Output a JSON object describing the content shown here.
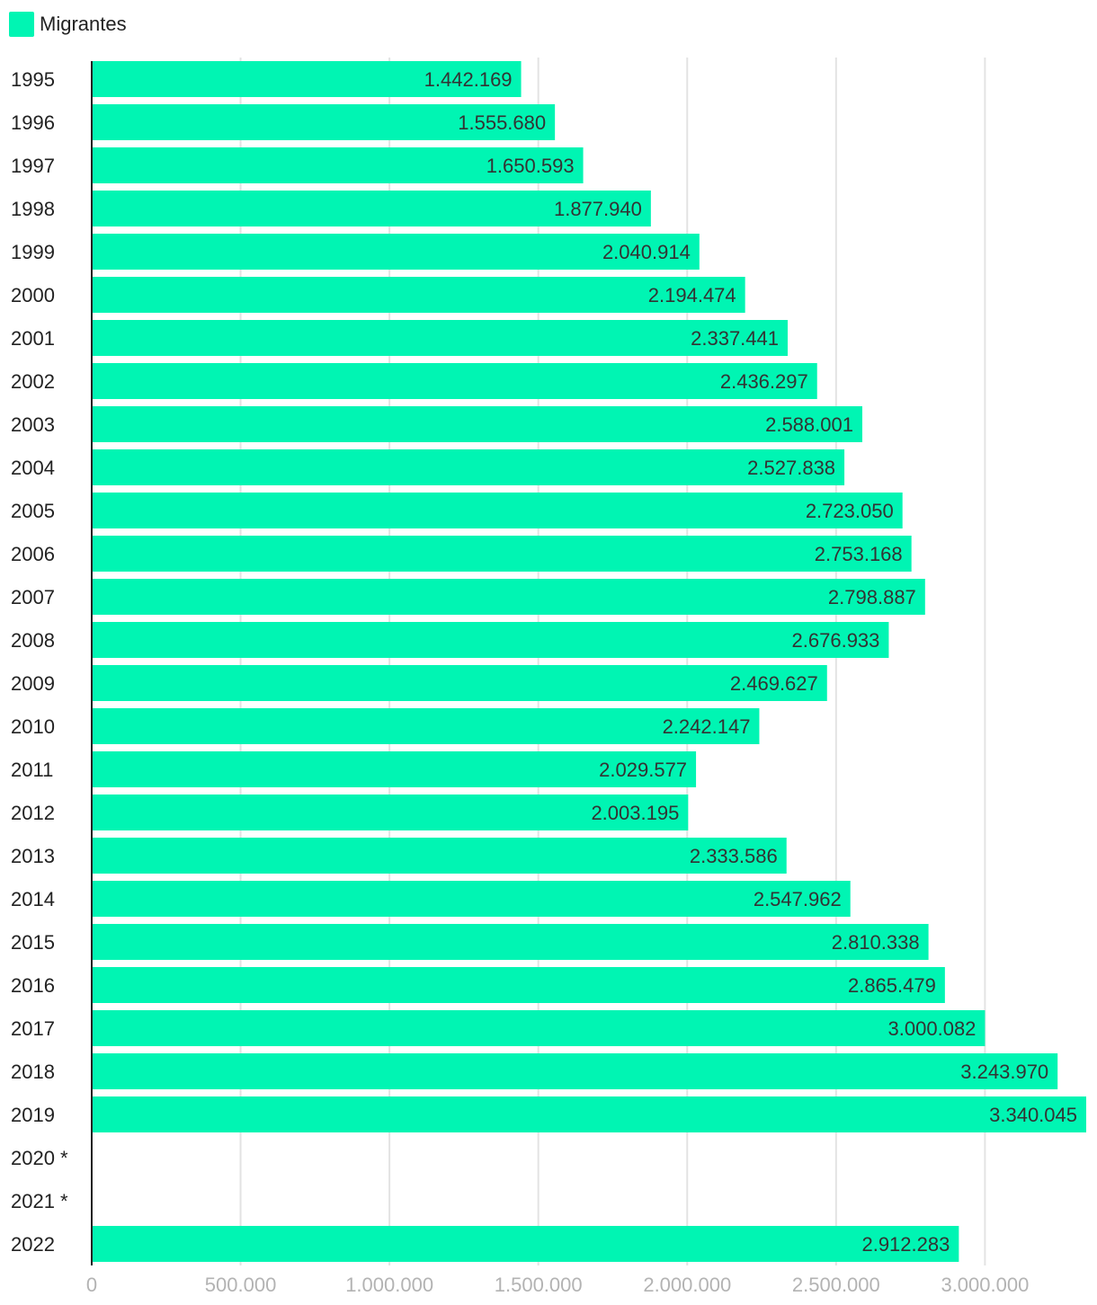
{
  "chart_data": {
    "type": "bar",
    "orientation": "horizontal",
    "categories": [
      "1995",
      "1996",
      "1997",
      "1998",
      "1999",
      "2000",
      "2001",
      "2002",
      "2003",
      "2004",
      "2005",
      "2006",
      "2007",
      "2008",
      "2009",
      "2010",
      "2011",
      "2012",
      "2013",
      "2014",
      "2015",
      "2016",
      "2017",
      "2018",
      "2019",
      "2020 *",
      "2021 *",
      "2022"
    ],
    "series": [
      {
        "name": "Migrantes",
        "color": "#00f5b3",
        "values": [
          1442169,
          1555680,
          1650593,
          1877940,
          2040914,
          2194474,
          2337441,
          2436297,
          2588001,
          2527838,
          2723050,
          2753168,
          2798887,
          2676933,
          2469627,
          2242147,
          2029577,
          2003195,
          2333586,
          2547962,
          2810338,
          2865479,
          3000082,
          3243970,
          3340045,
          null,
          null,
          2912283
        ],
        "labels": [
          "1.442.169",
          "1.555.680",
          "1.650.593",
          "1.877.940",
          "2.040.914",
          "2.194.474",
          "2.337.441",
          "2.436.297",
          "2.588.001",
          "2.527.838",
          "2.723.050",
          "2.753.168",
          "2.798.887",
          "2.676.933",
          "2.469.627",
          "2.242.147",
          "2.029.577",
          "2.003.195",
          "2.333.586",
          "2.547.962",
          "2.810.338",
          "2.865.479",
          "3.000.082",
          "3.243.970",
          "3.340.045",
          "",
          "",
          "2.912.283"
        ]
      }
    ],
    "xlim": [
      0,
      3340045
    ],
    "xticks": [
      0,
      500000,
      1000000,
      1500000,
      2000000,
      2500000,
      3000000
    ],
    "xtick_labels": [
      "0",
      "500.000",
      "1.000.000",
      "1.500.000",
      "2.000.000",
      "2.500.000",
      "3.000.000"
    ],
    "grid": true,
    "legend": "top-left",
    "title": "",
    "xlabel": "",
    "ylabel": ""
  }
}
